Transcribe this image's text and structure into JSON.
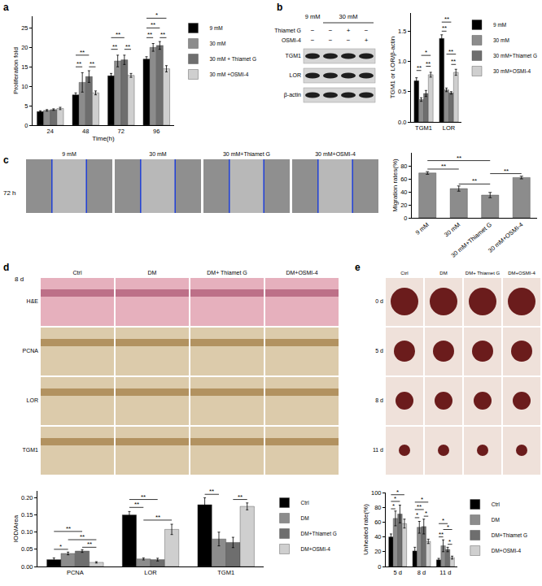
{
  "chart_data": [
    {
      "type": "bar",
      "x_label": "Time(h)",
      "y_label": "Proliferation fold",
      "categories": [
        "24",
        "48",
        "72",
        "96"
      ],
      "series": [
        {
          "name": "9 mM",
          "color": "#000000",
          "values": [
            3.5,
            7.8,
            12.7,
            17.0
          ],
          "errors": [
            0.2,
            0.5,
            0.6,
            0.6
          ]
        },
        {
          "name": "30 mM",
          "color": "#8c8c8c",
          "values": [
            3.8,
            11.0,
            16.5,
            20.0
          ],
          "errors": [
            0.2,
            2.5,
            1.5,
            1.0
          ]
        },
        {
          "name": "30 mM + Thiamet G",
          "color": "#6e6e6e",
          "values": [
            4.0,
            12.5,
            16.8,
            20.5
          ],
          "errors": [
            0.2,
            1.5,
            1.2,
            1.0
          ]
        },
        {
          "name": "30 mM +OSMI-4",
          "color": "#cfcfcf",
          "values": [
            4.3,
            8.3,
            12.8,
            14.5
          ],
          "errors": [
            0.3,
            0.5,
            0.5,
            0.8
          ]
        }
      ],
      "ylim": [
        0,
        28
      ],
      "yticks": [
        0,
        5,
        10,
        15,
        20,
        25
      ],
      "grid": false,
      "legend": "right",
      "significance": [
        {
          "category": "48",
          "from": "9 mM",
          "to": "30 mM",
          "y": 15,
          "label": "**"
        },
        {
          "category": "48",
          "from": "30 mM + Thiamet G",
          "to": "30 mM +OSMI-4",
          "y": 15,
          "label": "**"
        },
        {
          "category": "48",
          "from": "9 mM",
          "to": "30 mM + Thiamet G",
          "y": 18,
          "label": "**"
        },
        {
          "category": "72",
          "from": "9 mM",
          "to": "30 mM",
          "y": 19.5,
          "label": "**"
        },
        {
          "category": "72",
          "from": "30 mM + Thiamet G",
          "to": "30 mM +OSMI-4",
          "y": 19.5,
          "label": "**"
        },
        {
          "category": "72",
          "from": "9 mM",
          "to": "30 mM + Thiamet G",
          "y": 22.5,
          "label": "**"
        },
        {
          "category": "96",
          "from": "9 mM",
          "to": "30 mM",
          "y": 22.5,
          "label": "**"
        },
        {
          "category": "96",
          "from": "30 mM + Thiamet G",
          "to": "30 mM +OSMI-4",
          "y": 22.5,
          "label": "**"
        },
        {
          "category": "96",
          "from": "9 mM",
          "to": "30 mM + Thiamet G",
          "y": 25,
          "label": "**"
        },
        {
          "category": "96",
          "from": "9 mM",
          "to": "30 mM +OSMI-4",
          "y": 27.5,
          "label": "*"
        }
      ]
    },
    {
      "type": "bar",
      "y_label": "TGM1 or LOR/β-actin",
      "categories": [
        "TGM1",
        "LOR"
      ],
      "series": [
        {
          "name": "9 mM",
          "color": "#000000",
          "values": [
            0.68,
            1.38
          ],
          "errors": [
            0.05,
            0.06
          ]
        },
        {
          "name": "30 mM",
          "color": "#8c8c8c",
          "values": [
            0.37,
            0.53
          ],
          "errors": [
            0.03,
            0.03
          ]
        },
        {
          "name": "30 mM+Thiamet G",
          "color": "#6e6e6e",
          "values": [
            0.47,
            0.48
          ],
          "errors": [
            0.05,
            0.02
          ]
        },
        {
          "name": "30 mM+OSMI-4",
          "color": "#cfcfcf",
          "values": [
            0.78,
            0.82
          ],
          "errors": [
            0.04,
            0.05
          ]
        }
      ],
      "ylim": [
        0,
        1.8
      ],
      "yticks": [
        {
          "value": 0,
          "label": "0.0"
        },
        {
          "value": 0.5,
          "label": "0.5"
        },
        {
          "value": 1,
          "label": "1.0"
        },
        {
          "value": 1.5,
          "label": "1.5"
        }
      ],
      "grid": false,
      "legend": "right",
      "significance": [
        {
          "category": "TGM1",
          "from": "9 mM",
          "to": "30 mM",
          "y": 0.85,
          "label": "**"
        },
        {
          "category": "TGM1",
          "from": "30 mM+Thiamet G",
          "to": "30 mM+OSMI-4",
          "y": 0.92,
          "label": "**"
        },
        {
          "category": "TGM1",
          "from": "30 mM",
          "to": "30 mM+OSMI-4",
          "y": 1.1,
          "label": "*"
        },
        {
          "category": "LOR",
          "from": "9 mM",
          "to": "30 mM",
          "y": 1.5,
          "label": "**"
        },
        {
          "category": "LOR",
          "from": "9 mM",
          "to": "30 mM+Thiamet G",
          "y": 1.65,
          "label": "**"
        },
        {
          "category": "LOR",
          "from": "30 mM+Thiamet G",
          "to": "30 mM+OSMI-4",
          "y": 0.95,
          "label": "**"
        },
        {
          "category": "LOR",
          "from": "30 mM",
          "to": "30 mM+OSMI-4",
          "y": 1.12,
          "label": "**"
        }
      ]
    },
    {
      "type": "bar",
      "y_label": "Migration rates(%)",
      "categories": [
        "9 mM",
        "30 mM",
        "30 mM+Thiamet G",
        "30 mM+OSMI-4"
      ],
      "values": [
        69,
        45,
        35,
        62
      ],
      "errors": [
        2,
        4,
        4,
        2
      ],
      "color": "#8c8c8c",
      "ylim": [
        0,
        100
      ],
      "yticks": [
        0,
        20,
        40,
        60,
        80
      ],
      "grid": false,
      "significance": [
        {
          "from": "30 mM",
          "to": "30 mM+Thiamet G",
          "y": 52,
          "label": "**"
        },
        {
          "from": "30 mM+Thiamet G",
          "to": "30 mM+OSMI-4",
          "y": 68,
          "label": "**"
        },
        {
          "from": "9 mM",
          "to": "30 mM",
          "y": 75,
          "label": "**"
        },
        {
          "from": "9 mM",
          "to": "30 mM+Thiamet G",
          "y": 88,
          "label": "**"
        }
      ]
    },
    {
      "type": "bar",
      "y_label": "IOD/Area",
      "categories": [
        "PCNA",
        "LOR",
        "TGM1"
      ],
      "series": [
        {
          "name": "Ctrl",
          "color": "#000000",
          "values": [
            0.02,
            0.15,
            0.18
          ],
          "errors": [
            0.005,
            0.01,
            0.02
          ]
        },
        {
          "name": "DM",
          "color": "#8c8c8c",
          "values": [
            0.038,
            0.022,
            0.08
          ],
          "errors": [
            0.004,
            0.003,
            0.02
          ]
        },
        {
          "name": "DM+Thiamet G",
          "color": "#6e6e6e",
          "values": [
            0.045,
            0.02,
            0.07
          ],
          "errors": [
            0.004,
            0.004,
            0.015
          ]
        },
        {
          "name": "DM+OSMI-4",
          "color": "#cfcfcf",
          "values": [
            0.012,
            0.108,
            0.175
          ],
          "errors": [
            0.002,
            0.015,
            0.01
          ]
        }
      ],
      "ylim": [
        0,
        0.22
      ],
      "yticks": [
        {
          "value": 0,
          "label": "0.00"
        },
        {
          "value": 0.05,
          "label": "0.05"
        },
        {
          "value": 0.1,
          "label": "0.10"
        },
        {
          "value": 0.15,
          "label": "0.15"
        },
        {
          "value": 0.2,
          "label": "0.20"
        }
      ],
      "grid": false,
      "legend": "right",
      "significance": [
        {
          "category": "PCNA",
          "from": "Ctrl",
          "to": "DM",
          "y": 0.05,
          "label": "*"
        },
        {
          "category": "PCNA",
          "from": "DM+Thiamet G",
          "to": "DM+OSMI-4",
          "y": 0.056,
          "label": "**"
        },
        {
          "category": "PCNA",
          "from": "DM",
          "to": "DM+OSMI-4",
          "y": 0.078,
          "label": "**"
        },
        {
          "category": "PCNA",
          "from": "Ctrl",
          "to": "DM+Thiamet G",
          "y": 0.102,
          "label": "**"
        },
        {
          "category": "LOR",
          "from": "DM",
          "to": "DM+OSMI-4",
          "y": 0.135,
          "label": "**"
        },
        {
          "category": "LOR",
          "from": "Ctrl",
          "to": "DM",
          "y": 0.172,
          "label": "**"
        },
        {
          "category": "LOR",
          "from": "Ctrl",
          "to": "DM+Thiamet G",
          "y": 0.195,
          "label": "**"
        },
        {
          "category": "TGM1",
          "from": "Ctrl",
          "to": "DM",
          "y": 0.21,
          "label": "**"
        },
        {
          "category": "TGM1",
          "from": "DM+Thiamet G",
          "to": "DM+OSMI-4",
          "y": 0.195,
          "label": "**"
        }
      ]
    },
    {
      "type": "bar",
      "y_label": "Unhealed rate(%)",
      "categories": [
        "5 d",
        "8 d",
        "11 d"
      ],
      "series": [
        {
          "name": "Ctrl",
          "color": "#000000",
          "values": [
            40,
            21,
            9
          ],
          "errors": [
            4,
            5,
            2
          ]
        },
        {
          "name": "DM",
          "color": "#8c8c8c",
          "values": [
            65,
            53,
            28
          ],
          "errors": [
            10,
            8,
            8
          ]
        },
        {
          "name": "DM+Thiamet G",
          "color": "#6e6e6e",
          "values": [
            71,
            54,
            23
          ],
          "errors": [
            12,
            10,
            3
          ]
        },
        {
          "name": "DM+OSMI-4",
          "color": "#cfcfcf",
          "values": [
            58,
            34,
            12
          ],
          "errors": [
            6,
            3,
            2
          ]
        }
      ],
      "ylim": [
        0,
        100
      ],
      "yticks": [
        0,
        20,
        40,
        60,
        80,
        100
      ],
      "grid": false,
      "legend": "right",
      "significance": [
        {
          "category": "5 d",
          "from": "Ctrl",
          "to": "DM",
          "y": 78,
          "label": "*"
        },
        {
          "category": "5 d",
          "from": "Ctrl",
          "to": "DM+Thiamet G",
          "y": 88,
          "label": "*"
        },
        {
          "category": "5 d",
          "from": "Ctrl",
          "to": "DM+OSMI-4",
          "y": 97,
          "label": "*"
        },
        {
          "category": "8 d",
          "from": "Ctrl",
          "to": "DM",
          "y": 66,
          "label": "*"
        },
        {
          "category": "8 d",
          "from": "DM+Thiamet G",
          "to": "DM+OSMI-4",
          "y": 68,
          "label": "*"
        },
        {
          "category": "8 d",
          "from": "Ctrl",
          "to": "DM+Thiamet G",
          "y": 77,
          "label": "**"
        },
        {
          "category": "8 d",
          "from": "Ctrl",
          "to": "DM+OSMI-4",
          "y": 87,
          "label": "*"
        },
        {
          "category": "11 d",
          "from": "DM+Thiamet G",
          "to": "DM+OSMI-4",
          "y": 30,
          "label": "*"
        },
        {
          "category": "11 d",
          "from": "Ctrl",
          "to": "DM",
          "y": 40,
          "label": "**"
        },
        {
          "category": "11 d",
          "from": "DM",
          "to": "DM+OSMI-4",
          "y": 50,
          "label": "*"
        },
        {
          "category": "11 d",
          "from": "Ctrl",
          "to": "DM+Thiamet G",
          "y": 58,
          "label": "*"
        }
      ]
    }
  ],
  "panel_labels": [
    "a",
    "b",
    "c",
    "d",
    "e"
  ],
  "blot": {
    "header": [
      {
        "text": "9 mM",
        "span": 1
      },
      {
        "text": "30 mM",
        "span": 3
      }
    ],
    "treatments": [
      {
        "name": "Thiamet G",
        "signs": [
          "−",
          "−",
          "+",
          "−"
        ]
      },
      {
        "name": "OSMI-4",
        "signs": [
          "−",
          "−",
          "−",
          "+"
        ]
      }
    ],
    "bands": [
      "TGM1",
      "LOR",
      "β-actin"
    ]
  },
  "wound_scratch": {
    "time": "72 h",
    "images": [
      "9 mM",
      "30 mM",
      "30 mM+Thiamet G",
      "30 mM+OSMI-4"
    ]
  },
  "histology": {
    "day": "8 d",
    "columns": [
      "Ctrl",
      "DM",
      "DM+ Thiamet G",
      "DM+OSMI-4"
    ],
    "rows": [
      "H&E",
      "PCNA",
      "LOR",
      "TGM1"
    ]
  },
  "wound_photos": {
    "columns": [
      "Ctrl",
      "DM",
      "DM+ Thiamet G",
      "DM+OSMI-4"
    ],
    "rows": [
      "0 d",
      "5 d",
      "8 d",
      "11 d"
    ]
  }
}
